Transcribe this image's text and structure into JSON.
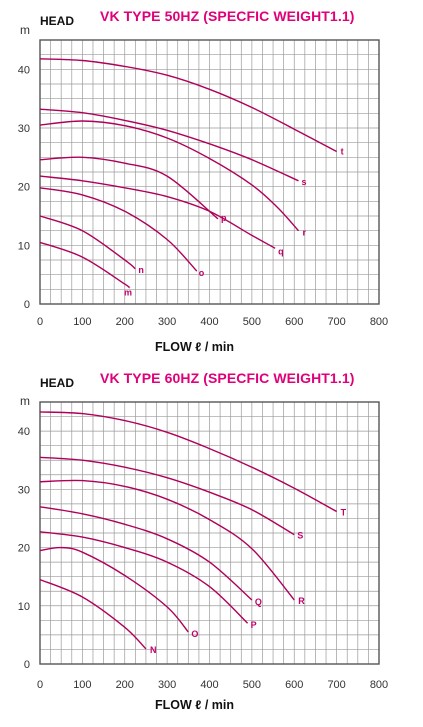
{
  "chart_data": [
    {
      "type": "line",
      "title": "VK TYPE 50HZ (SPECFIC WEIGHT1.1)",
      "ylabel": "HEAD",
      "yunit": "m",
      "xlabel": "FLOW ℓ / min",
      "xlim": [
        0,
        800
      ],
      "ylim": [
        0,
        45
      ],
      "xticks": [
        0,
        100,
        200,
        300,
        400,
        500,
        600,
        700,
        800
      ],
      "yticks": [
        0,
        10,
        20,
        30,
        40
      ],
      "grid": true,
      "colors": {
        "curve": "#b0005a",
        "label": "#c0006a",
        "title": "#e0007a",
        "grid": "#9a9a9a"
      },
      "series": [
        {
          "name": "t",
          "x": [
            0,
            100,
            200,
            300,
            400,
            500,
            600,
            700
          ],
          "y": [
            41.8,
            41.5,
            40.5,
            39,
            36.6,
            33.5,
            29.8,
            26
          ]
        },
        {
          "name": "s",
          "x": [
            0,
            100,
            200,
            300,
            400,
            500,
            610
          ],
          "y": [
            33.2,
            32.6,
            31.3,
            29.6,
            27.3,
            24.6,
            21
          ]
        },
        {
          "name": "r",
          "x": [
            0,
            100,
            200,
            300,
            400,
            500,
            560,
            610
          ],
          "y": [
            30.5,
            31.2,
            30.4,
            28.3,
            24.8,
            20.3,
            16.5,
            12.5
          ]
        },
        {
          "name": "q",
          "x": [
            0,
            100,
            200,
            300,
            400,
            500,
            555
          ],
          "y": [
            21.8,
            21,
            19.8,
            18.3,
            15.8,
            11.7,
            9.5
          ]
        },
        {
          "name": "p",
          "x": [
            0,
            100,
            200,
            300,
            420
          ],
          "y": [
            24.6,
            25,
            24,
            21.8,
            14.5
          ]
        },
        {
          "name": "o",
          "x": [
            0,
            100,
            200,
            300,
            370
          ],
          "y": [
            19.8,
            18.6,
            15.8,
            11,
            5.6
          ]
        },
        {
          "name": "n",
          "x": [
            0,
            100,
            200,
            225
          ],
          "y": [
            15,
            12.5,
            7.5,
            6
          ]
        },
        {
          "name": "m",
          "x": [
            0,
            100,
            200,
            210
          ],
          "y": [
            10.5,
            8,
            3.4,
            2.8
          ]
        }
      ]
    },
    {
      "type": "line",
      "title": "VK TYPE 60HZ (SPECFIC WEIGHT1.1)",
      "ylabel": "HEAD",
      "yunit": "m",
      "xlabel": "FLOW ℓ / min",
      "xlim": [
        0,
        800
      ],
      "ylim": [
        0,
        45
      ],
      "xticks": [
        0,
        100,
        200,
        300,
        400,
        500,
        600,
        700,
        800
      ],
      "yticks": [
        0,
        10,
        20,
        30,
        40
      ],
      "grid": true,
      "colors": {
        "curve": "#b0005a",
        "label": "#c0006a",
        "title": "#e0007a",
        "grid": "#9a9a9a"
      },
      "series": [
        {
          "name": "T",
          "x": [
            0,
            100,
            200,
            300,
            400,
            500,
            600,
            700
          ],
          "y": [
            43.3,
            43,
            41.8,
            39.8,
            37,
            33.8,
            30.2,
            26.2
          ]
        },
        {
          "name": "S",
          "x": [
            0,
            100,
            200,
            300,
            400,
            500,
            600
          ],
          "y": [
            35.5,
            35,
            33.8,
            32,
            29.5,
            26.5,
            22.2
          ]
        },
        {
          "name": "R",
          "x": [
            0,
            100,
            200,
            300,
            400,
            500,
            600
          ],
          "y": [
            31.3,
            31.5,
            30.5,
            28.3,
            24.8,
            19.8,
            11
          ]
        },
        {
          "name": "Q",
          "x": [
            0,
            100,
            200,
            300,
            400,
            500
          ],
          "y": [
            27,
            25.8,
            24,
            21.5,
            17.5,
            11
          ]
        },
        {
          "name": "P",
          "x": [
            0,
            100,
            200,
            300,
            400,
            490
          ],
          "y": [
            22.7,
            21.8,
            20,
            17.5,
            13.3,
            7
          ]
        },
        {
          "name": "O",
          "x": [
            0,
            50,
            100,
            200,
            300,
            350
          ],
          "y": [
            19.5,
            20,
            19.2,
            15.2,
            9.8,
            5.5
          ]
        },
        {
          "name": "N",
          "x": [
            0,
            100,
            200,
            250
          ],
          "y": [
            14.5,
            11.5,
            6.3,
            2.6
          ]
        }
      ]
    }
  ]
}
